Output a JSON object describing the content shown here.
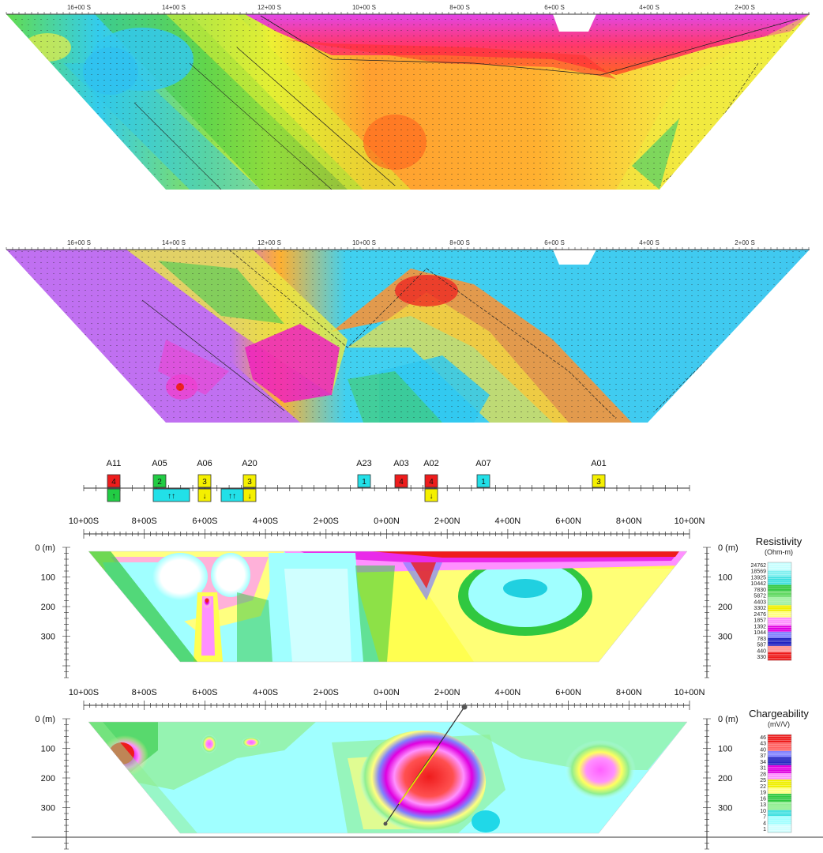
{
  "top_panels": {
    "stations": [
      "16+00 S",
      "14+00 S",
      "12+00 S",
      "10+00 S",
      "8+00 S",
      "6+00 S",
      "4+00 S",
      "2+00 S"
    ]
  },
  "anomaly_strip": {
    "anomalies": [
      {
        "id": "A11",
        "top": "4",
        "top_color": "#ee1c1c",
        "bottom": "↑",
        "bottom_color": "#22cc44"
      },
      {
        "id": "A05",
        "top": "2",
        "top_color": "#22cc44",
        "bottom": "↑↑",
        "bottom_color": "#22e0e8"
      },
      {
        "id": "A06",
        "top": "3",
        "top_color": "#f5f000",
        "bottom": "↓",
        "bottom_color": "#f5f000"
      },
      {
        "id": "A20",
        "top": "3",
        "top_color": "#f5f000",
        "bottom": "↓",
        "bottom_color": "#f5f000",
        "extra": "↑↑",
        "extra_color": "#22e0e8"
      },
      {
        "id": "A23",
        "top": "1",
        "top_color": "#22e0e8"
      },
      {
        "id": "A03",
        "top": "4",
        "top_color": "#ee1c1c"
      },
      {
        "id": "A02",
        "top": "4",
        "top_color": "#ee1c1c",
        "bottom": "↓",
        "bottom_color": "#f5f000"
      },
      {
        "id": "A07",
        "top": "1",
        "top_color": "#22e0e8"
      },
      {
        "id": "A01",
        "top": "3",
        "top_color": "#f5f000"
      }
    ]
  },
  "sections": {
    "stations": [
      "10+00S",
      "8+00S",
      "6+00S",
      "4+00S",
      "2+00S",
      "0+00N",
      "2+00N",
      "4+00N",
      "6+00N",
      "8+00N",
      "10+00N"
    ],
    "depth_labels": [
      "0 (m)",
      "100",
      "200",
      "300"
    ]
  },
  "resistivity_legend": {
    "title": "Resistivity",
    "unit": "(Ohm-m)",
    "values": [
      "24762",
      "18569",
      "13925",
      "10442",
      "7830",
      "5872",
      "4403",
      "3302",
      "2476",
      "1857",
      "1392",
      "1044",
      "783",
      "587",
      "440",
      "330"
    ]
  },
  "chargeability_legend": {
    "title": "Chargeability",
    "unit": "(mV/V)",
    "values": [
      "46",
      "43",
      "40",
      "37",
      "34",
      "31",
      "28",
      "25",
      "22",
      "19",
      "16",
      "13",
      "10",
      "7",
      "4",
      "1"
    ]
  },
  "colors": {
    "scale": [
      "#ee1c1c",
      "#ff8a8a",
      "#ffffff",
      "#2020c0",
      "#8080ff",
      "#e000e0",
      "#ff90ff",
      "#f0f000",
      "#ffff80",
      "#10c020",
      "#90ee90",
      "#20e0e0",
      "#a0ffff",
      "#ffffff"
    ]
  }
}
